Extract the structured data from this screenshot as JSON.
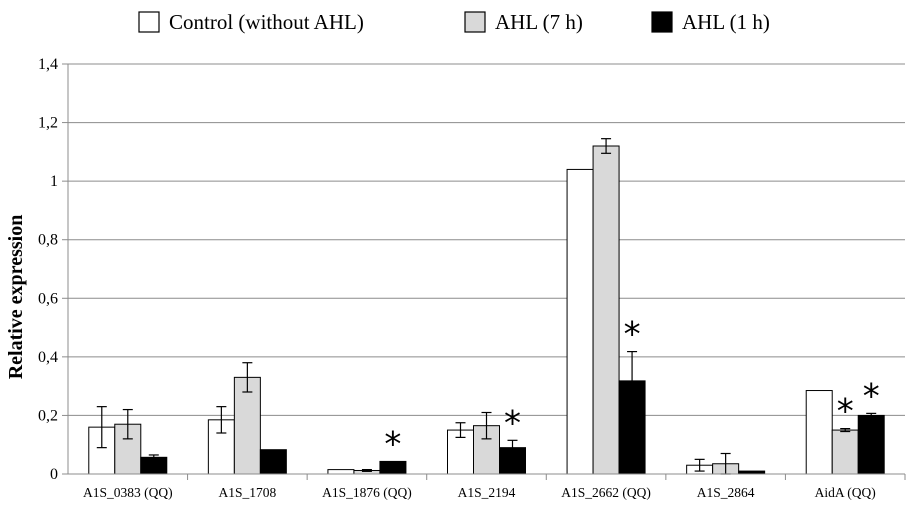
{
  "chart_data": {
    "type": "bar",
    "title": "",
    "xlabel": "",
    "ylabel": "Relative expression",
    "ylim": [
      0,
      1.4
    ],
    "yticks": [
      "0",
      "0,2",
      "0,4",
      "0,6",
      "0,8",
      "1",
      "1,2",
      "1,4"
    ],
    "grid": true,
    "legend": "top",
    "categories": [
      "A1S_0383 (QQ)",
      "A1S_1708",
      "A1S_1876 (QQ)",
      "A1S_2194",
      "A1S_2662 (QQ)",
      "A1S_2864",
      "AidA (QQ)"
    ],
    "series": [
      {
        "name": "Control (without AHL)",
        "color": "#ffffff",
        "values": [
          0.16,
          0.185,
          0.015,
          0.15,
          1.04,
          0.03,
          0.285
        ],
        "errors": [
          0.07,
          0.045,
          0.0,
          0.025,
          0.0,
          0.02,
          0.0
        ]
      },
      {
        "name": "AHL (7 h)",
        "color": "#d9d9d9",
        "values": [
          0.17,
          0.33,
          0.012,
          0.165,
          1.12,
          0.035,
          0.15
        ],
        "errors": [
          0.05,
          0.05,
          0.003,
          0.045,
          0.025,
          0.035,
          0.005
        ]
      },
      {
        "name": "AHL (1 h)",
        "color": "#000000",
        "values": [
          0.057,
          0.083,
          0.043,
          0.09,
          0.318,
          0.01,
          0.2
        ],
        "errors": [
          0.008,
          0.0,
          0.0,
          0.025,
          0.1,
          0.0,
          0.007
        ]
      }
    ],
    "significance": [
      {
        "category": "A1S_1876 (QQ)",
        "series": "AHL (1 h)",
        "label": "*"
      },
      {
        "category": "A1S_2194",
        "series": "AHL (1 h)",
        "label": "*"
      },
      {
        "category": "A1S_2662 (QQ)",
        "series": "AHL (1 h)",
        "label": "*"
      },
      {
        "category": "AidA (QQ)",
        "series": "AHL (7 h)",
        "label": "*"
      },
      {
        "category": "AidA (QQ)",
        "series": "AHL (1 h)",
        "label": "*"
      }
    ]
  }
}
